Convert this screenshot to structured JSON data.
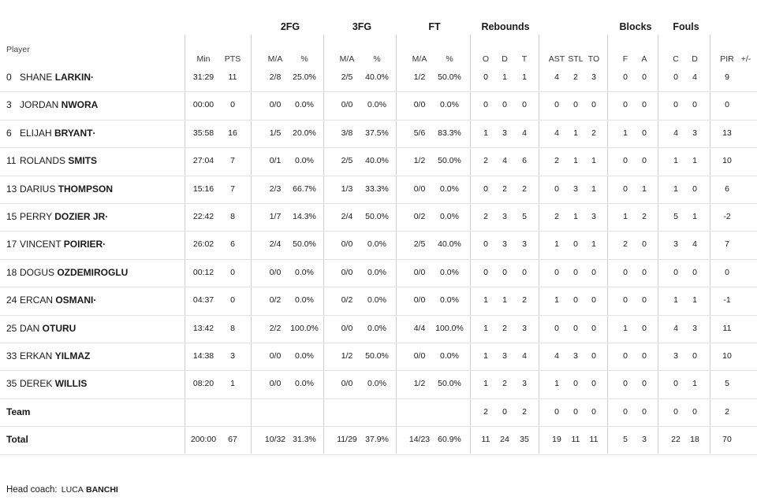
{
  "header": {
    "groups": [
      {
        "label": "2FG"
      },
      {
        "label": "3FG"
      },
      {
        "label": "FT"
      },
      {
        "label": "Rebounds"
      },
      {
        "label": "Blocks"
      },
      {
        "label": "Fouls"
      }
    ],
    "player_label": "Player",
    "columns": [
      "Min",
      "PTS",
      "M/A",
      "%",
      "M/A",
      "%",
      "M/A",
      "%",
      "O",
      "D",
      "T",
      "AST",
      "STL",
      "TO",
      "F",
      "A",
      "C",
      "D",
      "PIR",
      "+/-"
    ]
  },
  "players": [
    {
      "number": "0",
      "first": "SHANE",
      "last": "LARKIN",
      "starter": "·",
      "stats": [
        "31:29",
        "11",
        "2/8",
        "25.0%",
        "2/5",
        "40.0%",
        "1/2",
        "50.0%",
        "0",
        "1",
        "1",
        "4",
        "2",
        "3",
        "0",
        "0",
        "0",
        "4",
        "9",
        ""
      ]
    },
    {
      "number": "3",
      "first": "JORDAN",
      "last": "NWORA",
      "starter": "",
      "stats": [
        "00:00",
        "0",
        "0/0",
        "0.0%",
        "0/0",
        "0.0%",
        "0/0",
        "0.0%",
        "0",
        "0",
        "0",
        "0",
        "0",
        "0",
        "0",
        "0",
        "0",
        "0",
        "0",
        ""
      ]
    },
    {
      "number": "6",
      "first": "ELIJAH",
      "last": "BRYANT",
      "starter": "·",
      "stats": [
        "35:58",
        "16",
        "1/5",
        "20.0%",
        "3/8",
        "37.5%",
        "5/6",
        "83.3%",
        "1",
        "3",
        "4",
        "4",
        "1",
        "2",
        "1",
        "0",
        "4",
        "3",
        "13",
        ""
      ]
    },
    {
      "number": "11",
      "first": "ROLANDS",
      "last": "SMITS",
      "starter": "",
      "stats": [
        "27:04",
        "7",
        "0/1",
        "0.0%",
        "2/5",
        "40.0%",
        "1/2",
        "50.0%",
        "2",
        "4",
        "6",
        "2",
        "1",
        "1",
        "0",
        "0",
        "1",
        "1",
        "10",
        ""
      ]
    },
    {
      "number": "13",
      "first": "DARIUS",
      "last": "THOMPSON",
      "starter": "",
      "stats": [
        "15:16",
        "7",
        "2/3",
        "66.7%",
        "1/3",
        "33.3%",
        "0/0",
        "0.0%",
        "0",
        "2",
        "2",
        "0",
        "3",
        "1",
        "0",
        "1",
        "1",
        "0",
        "6",
        ""
      ]
    },
    {
      "number": "15",
      "first": "PERRY",
      "last": "DOZIER JR",
      "starter": "·",
      "stats": [
        "22:42",
        "8",
        "1/7",
        "14.3%",
        "2/4",
        "50.0%",
        "0/2",
        "0.0%",
        "2",
        "3",
        "5",
        "2",
        "1",
        "3",
        "1",
        "2",
        "5",
        "1",
        "-2",
        ""
      ]
    },
    {
      "number": "17",
      "first": "VINCENT",
      "last": "POIRIER",
      "starter": "·",
      "stats": [
        "26:02",
        "6",
        "2/4",
        "50.0%",
        "0/0",
        "0.0%",
        "2/5",
        "40.0%",
        "0",
        "3",
        "3",
        "1",
        "0",
        "1",
        "2",
        "0",
        "3",
        "4",
        "7",
        ""
      ]
    },
    {
      "number": "18",
      "first": "DOGUS",
      "last": "OZDEMIROGLU",
      "starter": "",
      "stats": [
        "00:12",
        "0",
        "0/0",
        "0.0%",
        "0/0",
        "0.0%",
        "0/0",
        "0.0%",
        "0",
        "0",
        "0",
        "0",
        "0",
        "0",
        "0",
        "0",
        "0",
        "0",
        "0",
        ""
      ]
    },
    {
      "number": "24",
      "first": "ERCAN",
      "last": "OSMANI",
      "starter": "·",
      "stats": [
        "04:37",
        "0",
        "0/2",
        "0.0%",
        "0/2",
        "0.0%",
        "0/0",
        "0.0%",
        "1",
        "1",
        "2",
        "1",
        "0",
        "0",
        "0",
        "0",
        "1",
        "1",
        "-1",
        ""
      ]
    },
    {
      "number": "25",
      "first": "DAN",
      "last": "OTURU",
      "starter": "",
      "stats": [
        "13:42",
        "8",
        "2/2",
        "100.0%",
        "0/0",
        "0.0%",
        "4/4",
        "100.0%",
        "1",
        "2",
        "3",
        "0",
        "0",
        "0",
        "1",
        "0",
        "4",
        "3",
        "11",
        ""
      ]
    },
    {
      "number": "33",
      "first": "ERKAN",
      "last": "YILMAZ",
      "starter": "",
      "stats": [
        "14:38",
        "3",
        "0/0",
        "0.0%",
        "1/2",
        "50.0%",
        "0/0",
        "0.0%",
        "1",
        "3",
        "4",
        "4",
        "3",
        "0",
        "0",
        "0",
        "3",
        "0",
        "10",
        ""
      ]
    },
    {
      "number": "35",
      "first": "DEREK",
      "last": "WILLIS",
      "starter": "",
      "stats": [
        "08:20",
        "1",
        "0/0",
        "0.0%",
        "0/0",
        "0.0%",
        "1/2",
        "50.0%",
        "1",
        "2",
        "3",
        "1",
        "0",
        "0",
        "0",
        "0",
        "0",
        "1",
        "5",
        ""
      ]
    }
  ],
  "team_row": {
    "label": "Team",
    "stats": [
      "",
      "",
      "",
      "",
      "",
      "",
      "",
      "",
      "2",
      "0",
      "2",
      "0",
      "0",
      "0",
      "0",
      "0",
      "0",
      "0",
      "2",
      ""
    ]
  },
  "total_row": {
    "label": "Total",
    "stats": [
      "200:00",
      "67",
      "10/32",
      "31.3%",
      "11/29",
      "37.9%",
      "14/23",
      "60.9%",
      "11",
      "24",
      "35",
      "19",
      "11",
      "11",
      "5",
      "3",
      "22",
      "18",
      "70",
      ""
    ]
  },
  "coach": {
    "label": "Head coach:",
    "first": "LUCA",
    "last": "BANCHI"
  }
}
